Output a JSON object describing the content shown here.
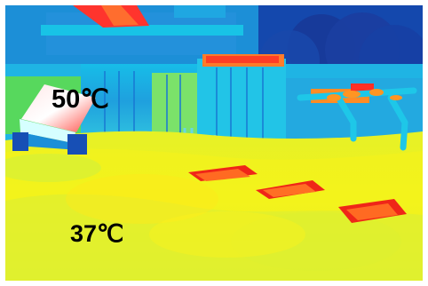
{
  "thermal_image": {
    "readouts": {
      "hot_spot": "50℃",
      "ground": "37℃"
    },
    "palette": {
      "cold_blue": "#1250b8",
      "cyan": "#19c5e8",
      "green": "#69d64e",
      "yellow": "#f2f21e",
      "orange": "#ff8a1e",
      "red": "#ef2618",
      "white": "#ffffff"
    }
  }
}
